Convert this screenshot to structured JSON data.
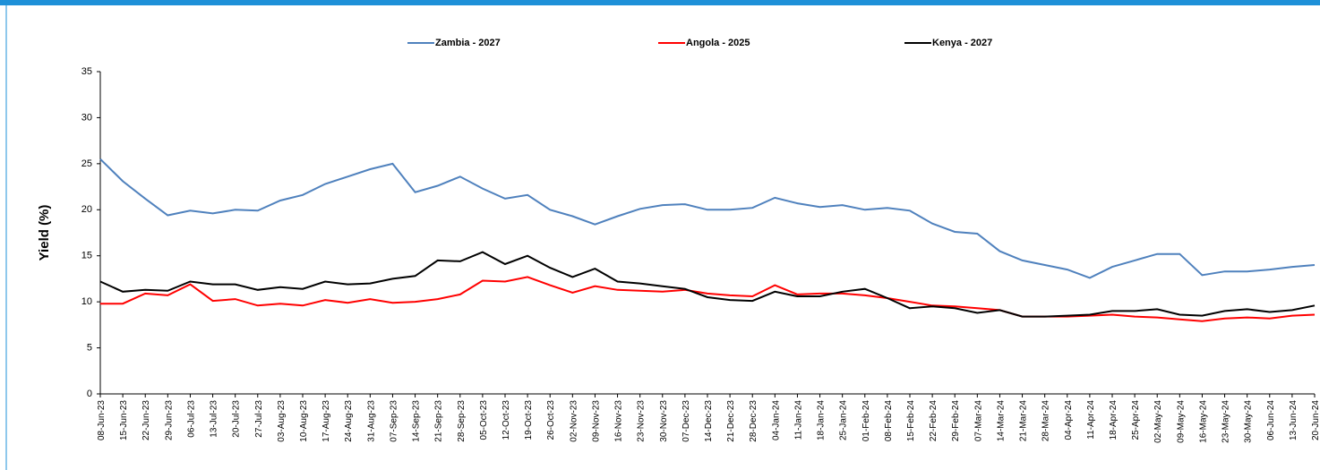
{
  "chart_data": {
    "type": "line",
    "y_label": "Yield (%)",
    "legend": "top",
    "categories": [
      "08-Jun-23",
      "15-Jun-23",
      "22-Jun-23",
      "29-Jun-23",
      "06-Jul-23",
      "13-Jul-23",
      "20-Jul-23",
      "27-Jul-23",
      "03-Aug-23",
      "10-Aug-23",
      "17-Aug-23",
      "24-Aug-23",
      "31-Aug-23",
      "07-Sep-23",
      "14-Sep-23",
      "21-Sep-23",
      "28-Sep-23",
      "05-Oct-23",
      "12-Oct-23",
      "19-Oct-23",
      "26-Oct-23",
      "02-Nov-23",
      "09-Nov-23",
      "16-Nov-23",
      "23-Nov-23",
      "30-Nov-23",
      "07-Dec-23",
      "14-Dec-23",
      "21-Dec-23",
      "28-Dec-23",
      "04-Jan-24",
      "11-Jan-24",
      "18-Jan-24",
      "25-Jan-24",
      "01-Feb-24",
      "08-Feb-24",
      "15-Feb-24",
      "22-Feb-24",
      "29-Feb-24",
      "07-Mar-24",
      "14-Mar-24",
      "21-Mar-24",
      "28-Mar-24",
      "04-Apr-24",
      "11-Apr-24",
      "18-Apr-24",
      "25-Apr-24",
      "02-May-24",
      "09-May-24",
      "16-May-24",
      "23-May-24",
      "30-May-24",
      "06-Jun-24",
      "13-Jun-24",
      "20-Jun-24"
    ],
    "series": [
      {
        "name": "Zambia - 2027",
        "color": "#4f81bd",
        "values": [
          25.5,
          23.1,
          21.2,
          19.4,
          19.9,
          19.6,
          20.0,
          19.9,
          21.0,
          21.6,
          22.8,
          23.6,
          24.4,
          25.0,
          21.9,
          22.6,
          23.6,
          22.3,
          21.2,
          21.6,
          20.0,
          19.3,
          18.4,
          19.3,
          20.1,
          20.5,
          20.6,
          20.0,
          20.0,
          20.2,
          21.3,
          20.7,
          20.3,
          20.5,
          20.0,
          20.2,
          19.9,
          18.5,
          17.6,
          17.4,
          15.5,
          14.5,
          14.0,
          13.5,
          12.6,
          13.8,
          14.5,
          15.2,
          15.2,
          12.9,
          13.3,
          13.3,
          13.5,
          13.8,
          14.0
        ]
      },
      {
        "name": "Angola - 2025",
        "color": "#ff0000",
        "values": [
          9.8,
          9.8,
          10.9,
          10.7,
          11.9,
          10.1,
          10.3,
          9.6,
          9.8,
          9.6,
          10.2,
          9.9,
          10.3,
          9.9,
          10.0,
          10.3,
          10.8,
          12.3,
          12.2,
          12.7,
          11.8,
          11.0,
          11.7,
          11.3,
          11.2,
          11.1,
          11.3,
          10.9,
          10.7,
          10.6,
          11.8,
          10.8,
          10.9,
          10.9,
          10.7,
          10.4,
          10.0,
          9.6,
          9.5,
          9.3,
          9.1,
          8.4,
          8.4,
          8.4,
          8.5,
          8.6,
          8.4,
          8.3,
          8.1,
          7.9,
          8.2,
          8.3,
          8.2,
          8.5,
          8.6
        ]
      },
      {
        "name": "Kenya -  2027",
        "color": "#000000",
        "values": [
          12.2,
          11.1,
          11.3,
          11.2,
          12.2,
          11.9,
          11.9,
          11.3,
          11.6,
          11.4,
          12.2,
          11.9,
          12.0,
          12.5,
          12.8,
          14.5,
          14.4,
          15.4,
          14.1,
          15.0,
          13.7,
          12.7,
          13.6,
          12.2,
          12.0,
          11.7,
          11.4,
          10.5,
          10.2,
          10.1,
          11.1,
          10.6,
          10.6,
          11.1,
          11.4,
          10.4,
          9.3,
          9.5,
          9.3,
          8.8,
          9.1,
          8.4,
          8.4,
          8.5,
          8.6,
          9.0,
          9.0,
          9.2,
          8.6,
          8.5,
          9.0,
          9.2,
          8.9,
          9.1,
          9.6
        ]
      }
    ],
    "ylim": [
      0,
      35
    ],
    "yticks": [
      0,
      5,
      10,
      15,
      20,
      25,
      30,
      35
    ],
    "grid": false
  }
}
